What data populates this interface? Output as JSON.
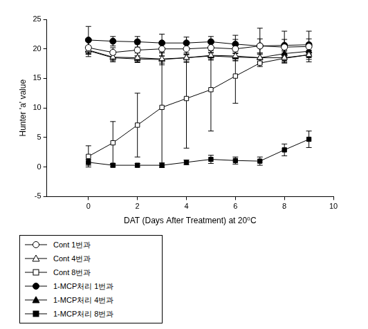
{
  "chart_data": {
    "type": "line",
    "x_label": "DAT (Days After Treatment) at 20⁰C",
    "y_label": "Hunter 'a' value",
    "xlim": [
      -1.7,
      10
    ],
    "xticks": [
      0,
      2,
      4,
      6,
      8,
      10
    ],
    "ylim": [
      -5,
      25
    ],
    "yticks": [
      -5,
      0,
      5,
      10,
      15,
      20,
      25
    ],
    "grid": false,
    "legend": "bottom-left",
    "x": [
      0,
      1,
      2,
      3,
      4,
      5,
      6,
      7,
      8,
      9
    ],
    "series": [
      {
        "name": "Cont 1번과",
        "color": "#000000",
        "marker": "open circle",
        "values": [
          20.2,
          19.4,
          19.8,
          20.0,
          20.0,
          20.2,
          20.0,
          20.5,
          20.3,
          20.4
        ],
        "errors": [
          1.5,
          0.8,
          1.0,
          1.2,
          1.0,
          0.8,
          1.6,
          3.0,
          2.7,
          2.6
        ]
      },
      {
        "name": "Cont 4번과",
        "color": "#000000",
        "marker": "open triangle",
        "values": [
          19.8,
          18.6,
          18.5,
          18.3,
          18.5,
          18.9,
          18.8,
          18.5,
          18.5,
          19.0
        ],
        "errors": [
          0.7,
          0.8,
          0.8,
          1.0,
          0.8,
          0.8,
          0.8,
          0.8,
          0.8,
          0.8
        ]
      },
      {
        "name": "Cont 8번과",
        "color": "#000000",
        "marker": "open square",
        "values": [
          1.8,
          4.1,
          7.1,
          10.1,
          11.6,
          13.1,
          15.4,
          17.6,
          18.4,
          19.0
        ],
        "errors": [
          1.8,
          3.6,
          5.4,
          9.9,
          8.4,
          7.0,
          4.6,
          0.6,
          0.5,
          0.5
        ]
      },
      {
        "name": "1-MCP처리 1번과",
        "color": "#000000",
        "marker": "filled circle",
        "values": [
          21.5,
          21.3,
          21.2,
          21.0,
          21.0,
          21.2,
          20.8,
          20.5,
          20.6,
          20.7
        ],
        "errors": [
          2.3,
          0.8,
          0.9,
          1.5,
          1.0,
          0.9,
          1.5,
          1.2,
          1.0,
          1.0
        ]
      },
      {
        "name": "1-MCP처리 4번과",
        "color": "#000000",
        "marker": "filled triangle",
        "values": [
          19.7,
          18.5,
          18.3,
          18.2,
          18.5,
          18.8,
          18.6,
          18.5,
          19.2,
          19.6
        ],
        "errors": [
          0.6,
          0.5,
          0.5,
          0.6,
          0.6,
          0.5,
          0.6,
          0.6,
          0.6,
          0.6
        ]
      },
      {
        "name": "1-MCP처리 8번과",
        "color": "#000000",
        "marker": "filled square",
        "values": [
          0.8,
          0.3,
          0.3,
          0.3,
          0.8,
          1.3,
          1.1,
          1.0,
          2.9,
          4.7
        ],
        "errors": [
          0.5,
          0.3,
          0.3,
          0.4,
          0.4,
          0.7,
          0.6,
          0.7,
          1.0,
          1.4
        ]
      }
    ]
  }
}
